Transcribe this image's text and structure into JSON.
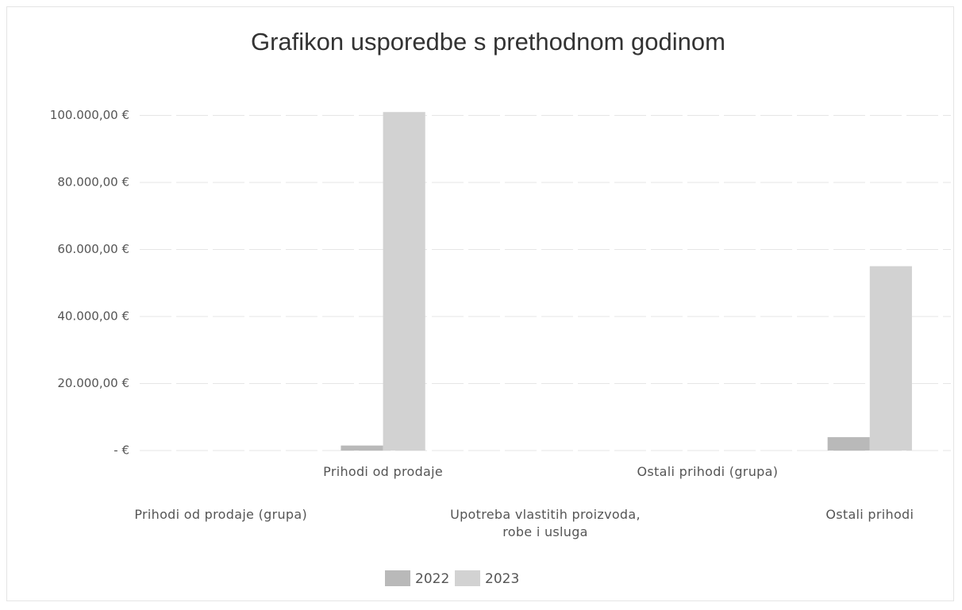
{
  "chart_data": {
    "type": "bar",
    "title": "Grafikon usporedbe s prethodnom godinom",
    "categories": [
      "Prihodi od prodaje (grupa)",
      "Prihodi od prodaje",
      "Upotreba vlastitih proizvoda, robe i usluga",
      "Ostali prihodi (grupa)",
      "Ostali prihodi"
    ],
    "series": [
      {
        "name": "2022",
        "color": "#b9b9b9",
        "values": [
          0,
          1500,
          0,
          0,
          4000
        ]
      },
      {
        "name": "2023",
        "color": "#d2d2d2",
        "values": [
          0,
          101000,
          0,
          0,
          55000
        ]
      }
    ],
    "ylim": [
      0,
      102000
    ],
    "yticks": [
      {
        "value": 0,
        "label": "-  €"
      },
      {
        "value": 20000,
        "label": "20.000,00 €"
      },
      {
        "value": 40000,
        "label": "40.000,00 €"
      },
      {
        "value": 60000,
        "label": "60.000,00 €"
      },
      {
        "value": 80000,
        "label": "80.000,00 €"
      },
      {
        "value": 100000,
        "label": "100.000,00 €"
      }
    ],
    "grid": true,
    "legend": "bottom"
  }
}
